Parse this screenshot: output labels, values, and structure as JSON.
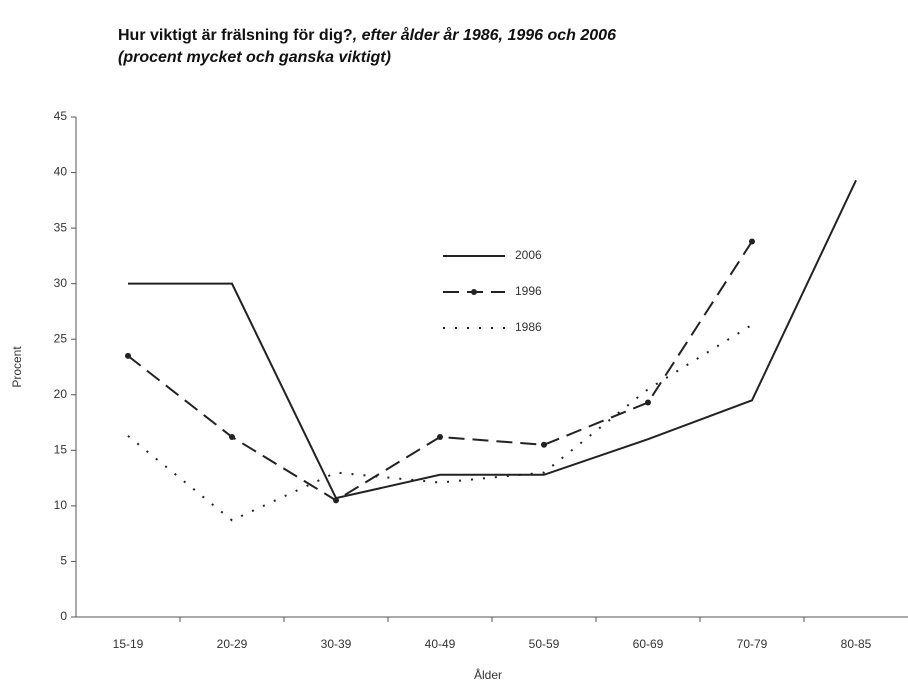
{
  "chart_data": {
    "type": "line",
    "title": "Hur viktigt är frälsning för dig?",
    "title_italic": ", efter ålder år 1986, 1996 och 2006",
    "subtitle": "(procent mycket och ganska viktigt)",
    "x_label": "Ålder",
    "y_label": "Procent",
    "categories": [
      "15-19",
      "20-29",
      "30-39",
      "40-49",
      "50-59",
      "60-69",
      "70-79",
      "80-85"
    ],
    "series": [
      {
        "name": "2006",
        "color": "#222222",
        "style": "solid",
        "marker": false,
        "values": [
          30,
          30,
          10.7,
          12.8,
          12.8,
          16,
          19.5,
          39.3
        ]
      },
      {
        "name": "1996",
        "color": "#222222",
        "style": "dashed",
        "marker": true,
        "values": [
          23.5,
          16.2,
          10.5,
          16.2,
          15.5,
          19.3,
          33.8,
          null
        ]
      },
      {
        "name": "1986",
        "color": "#222222",
        "style": "dotted",
        "marker": false,
        "values": [
          16.3,
          8.7,
          13,
          12.1,
          13,
          20.5,
          26.3,
          null
        ]
      }
    ],
    "ylim": [
      0,
      45
    ],
    "yticks": [
      0,
      5,
      10,
      15,
      20,
      25,
      30,
      35,
      40,
      45
    ],
    "grid": false
  }
}
